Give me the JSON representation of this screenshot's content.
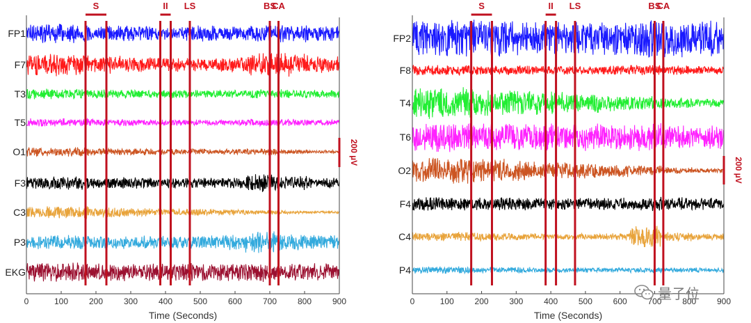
{
  "chart_data": [
    {
      "type": "line",
      "title": "",
      "xlabel": "Time (Seconds)",
      "ylabel": "",
      "xlim": [
        0,
        900
      ],
      "x_ticks": [
        0,
        100,
        200,
        300,
        400,
        500,
        600,
        700,
        800,
        900
      ],
      "grid": false,
      "scale_bar": {
        "label": "200 µV",
        "value_uV": 200
      },
      "events": [
        {
          "label": "S",
          "start": 170,
          "end": 230
        },
        {
          "label": "II",
          "start": 385,
          "end": 415
        },
        {
          "label": "LS",
          "start": 470,
          "end": 470
        },
        {
          "label": "BS",
          "start": 700,
          "end": 700
        },
        {
          "label": "CA",
          "start": 725,
          "end": 725
        }
      ],
      "series": [
        {
          "name": "FP1",
          "color": "#1a1aff",
          "amplitude_uV": [
            160,
            160,
            130,
            130,
            110,
            140,
            120,
            140,
            150,
            130
          ]
        },
        {
          "name": "F7",
          "color": "#ff1a1a",
          "amplitude_uV": [
            190,
            180,
            150,
            140,
            120,
            110,
            130,
            190,
            200,
            150
          ]
        },
        {
          "name": "T3",
          "color": "#22ee33",
          "amplitude_uV": [
            90,
            90,
            80,
            80,
            70,
            70,
            70,
            80,
            80,
            70
          ]
        },
        {
          "name": "T5",
          "color": "#ff22ff",
          "amplitude_uV": [
            70,
            70,
            60,
            60,
            50,
            50,
            50,
            60,
            60,
            50
          ]
        },
        {
          "name": "O1",
          "color": "#cc5522",
          "amplitude_uV": [
            80,
            80,
            60,
            60,
            50,
            50,
            50,
            60,
            40,
            30
          ]
        },
        {
          "name": "F3",
          "color": "#000000",
          "amplitude_uV": [
            110,
            110,
            100,
            100,
            90,
            90,
            90,
            150,
            120,
            90
          ]
        },
        {
          "name": "C3",
          "color": "#e8a33a",
          "amplitude_uV": [
            100,
            110,
            90,
            70,
            60,
            60,
            50,
            40,
            30,
            20
          ]
        },
        {
          "name": "P3",
          "color": "#33aadd",
          "amplitude_uV": [
            120,
            130,
            110,
            110,
            110,
            120,
            130,
            200,
            150,
            120
          ]
        },
        {
          "name": "EKG",
          "color": "#9b1030",
          "amplitude_uV": [
            160,
            160,
            150,
            150,
            150,
            150,
            150,
            160,
            150,
            150
          ]
        }
      ]
    },
    {
      "type": "line",
      "title": "",
      "xlabel": "Time (Seconds)",
      "ylabel": "",
      "xlim": [
        0,
        900
      ],
      "x_ticks": [
        0,
        100,
        200,
        300,
        400,
        500,
        600,
        700,
        800,
        900
      ],
      "grid": false,
      "scale_bar": {
        "label": "200 µV",
        "value_uV": 200
      },
      "events": [
        {
          "label": "S",
          "start": 170,
          "end": 230
        },
        {
          "label": "II",
          "start": 385,
          "end": 415
        },
        {
          "label": "LS",
          "start": 470,
          "end": 470
        },
        {
          "label": "BS",
          "start": 700,
          "end": 700
        },
        {
          "label": "CA",
          "start": 725,
          "end": 725
        }
      ],
      "series": [
        {
          "name": "FP2",
          "color": "#1a1aff",
          "amplitude_uV": [
            330,
            330,
            320,
            300,
            280,
            280,
            300,
            330,
            330,
            300
          ]
        },
        {
          "name": "F8",
          "color": "#ff1a1a",
          "amplitude_uV": [
            90,
            90,
            80,
            80,
            70,
            70,
            80,
            90,
            80,
            70
          ]
        },
        {
          "name": "T4",
          "color": "#22ee33",
          "amplitude_uV": [
            260,
            260,
            230,
            220,
            200,
            170,
            140,
            120,
            90,
            70
          ]
        },
        {
          "name": "T6",
          "color": "#ff22ff",
          "amplitude_uV": [
            250,
            250,
            240,
            230,
            230,
            230,
            220,
            230,
            210,
            200
          ]
        },
        {
          "name": "O2",
          "color": "#cc5522",
          "amplitude_uV": [
            230,
            220,
            200,
            180,
            150,
            130,
            110,
            90,
            60,
            40
          ]
        },
        {
          "name": "F4",
          "color": "#000000",
          "amplitude_uV": [
            120,
            120,
            110,
            110,
            100,
            100,
            110,
            120,
            110,
            100
          ]
        },
        {
          "name": "C4",
          "color": "#e8a33a",
          "amplitude_uV": [
            70,
            80,
            70,
            60,
            50,
            50,
            60,
            180,
            80,
            60
          ]
        },
        {
          "name": "P4",
          "color": "#33aadd",
          "amplitude_uV": [
            60,
            60,
            50,
            50,
            40,
            40,
            40,
            50,
            40,
            40
          ]
        }
      ]
    }
  ],
  "watermark": {
    "text": "量子位",
    "logo_icon": "wechat-icon"
  }
}
